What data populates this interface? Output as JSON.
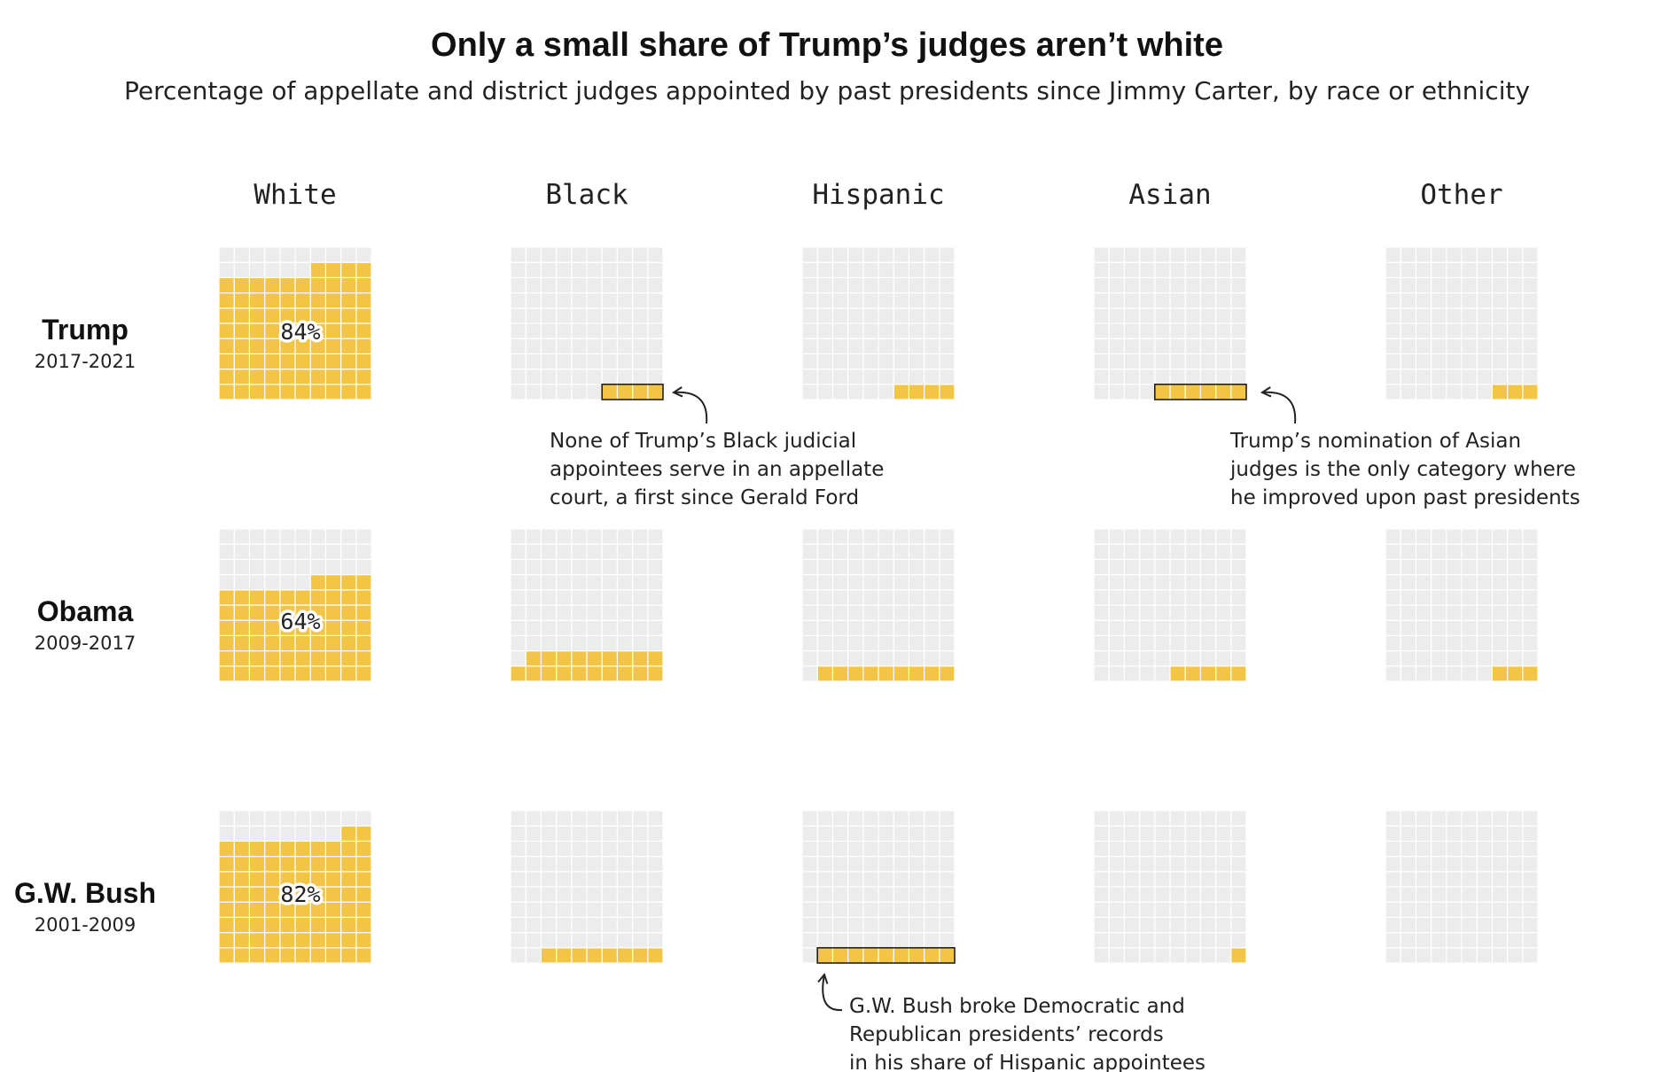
{
  "chart_data": {
    "type": "waffle",
    "title": "Only a small share of Trump’s judges aren’t white",
    "subtitle": "Percentage of appellate and district judges appointed by past presidents since Jimmy Carter, by race or ethnicity",
    "categories": [
      "White",
      "Black",
      "Hispanic",
      "Asian",
      "Other"
    ],
    "grid": "10x10 squares, 1 square = 1%",
    "colors": {
      "filled": "#f2c546",
      "empty": "#ececec",
      "highlight_outline": "#222222"
    },
    "rows": [
      {
        "president": "Trump",
        "years": "2017-2021",
        "values": [
          84,
          4,
          4,
          6,
          3
        ],
        "labels": [
          "84%",
          "",
          "",
          "",
          ""
        ]
      },
      {
        "president": "Obama",
        "years": "2009-2017",
        "values": [
          64,
          19,
          9,
          5,
          3
        ],
        "labels": [
          "64%",
          "",
          "",
          "",
          ""
        ]
      },
      {
        "president": "G.W. Bush",
        "years": "2001-2009",
        "values": [
          82,
          8,
          9,
          1,
          0
        ],
        "labels": [
          "82%",
          "",
          "",
          "",
          ""
        ]
      }
    ],
    "highlights": [
      {
        "row": 0,
        "category": "Black"
      },
      {
        "row": 0,
        "category": "Asian"
      },
      {
        "row": 2,
        "category": "Hispanic"
      }
    ],
    "annotations": [
      {
        "row": 0,
        "category": "Black",
        "lines": [
          "None of Trump’s Black judicial",
          "appointees serve in an appellate",
          "court, a first since Gerald Ford"
        ]
      },
      {
        "row": 0,
        "category": "Asian",
        "lines": [
          "Trump’s nomination of Asian",
          "judges is the only category where",
          "he improved upon past presidents"
        ]
      },
      {
        "row": 2,
        "category": "Hispanic",
        "lines": [
          "G.W. Bush broke Democratic and",
          "Republican presidents’ records",
          "in his share of Hispanic appointees"
        ]
      }
    ]
  }
}
